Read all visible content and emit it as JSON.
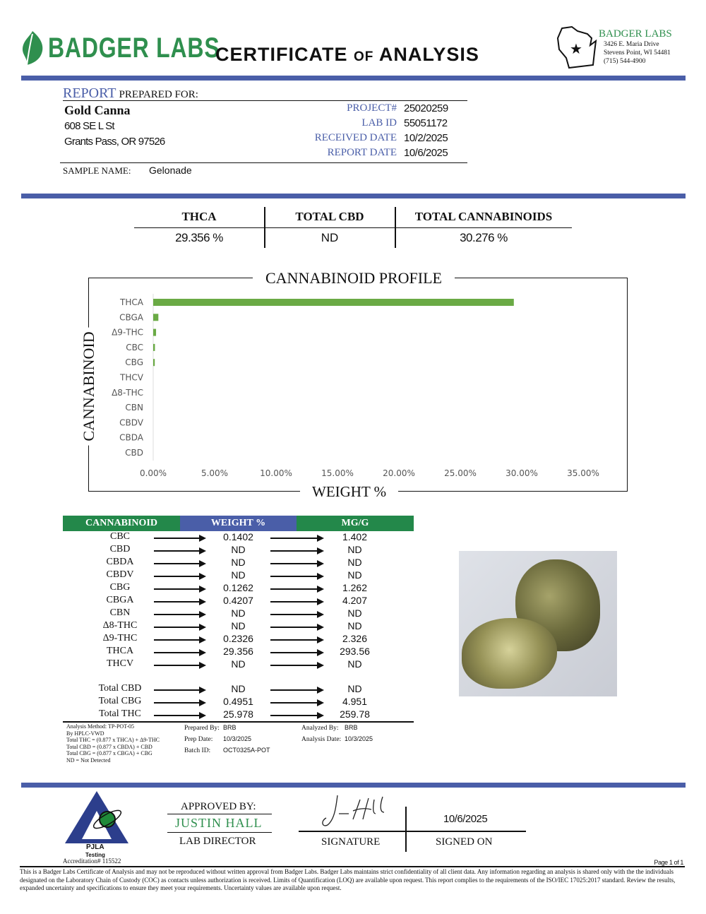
{
  "header": {
    "logo_text": "BADGER LABS",
    "title_pre": "CERTIFICATE",
    "title_of": "OF",
    "title_post": "ANALYSIS",
    "lab_name": "BADGER LABS",
    "lab_address1": "3426 E. Maria Drive",
    "lab_address2": "Stevens Point, WI 54481",
    "lab_phone": "(715) 544-4900"
  },
  "report": {
    "report_label": "REPORT",
    "prepared_for": "PREPARED FOR:",
    "client_name": "Gold Canna",
    "client_address1": "608 SE L St",
    "client_address2": "Grants Pass, OR 97526",
    "project_label": "PROJECT#",
    "project": "25020259",
    "labid_label": "LAB ID",
    "labid": "55051172",
    "received_label": "RECEIVED DATE",
    "received": "10/2/2025",
    "reportdate_label": "REPORT DATE",
    "reportdate": "10/6/2025",
    "sample_label": "SAMPLE NAME:",
    "sample": "Gelonade"
  },
  "summary": [
    {
      "label": "THCA",
      "value": "29.356 %"
    },
    {
      "label": "TOTAL CBD",
      "value": "ND"
    },
    {
      "label": "TOTAL CANNABINOIDS",
      "value": "30.276 %"
    }
  ],
  "chart_data": {
    "type": "bar",
    "orientation": "horizontal",
    "title": "CANNABINOID PROFILE",
    "xlabel": "WEIGHT %",
    "ylabel": "CANNABINOID",
    "categories": [
      "THCA",
      "CBGA",
      "Δ9-THC",
      "CBC",
      "CBG",
      "THCV",
      "Δ8-THC",
      "CBN",
      "CBDV",
      "CBDA",
      "CBD"
    ],
    "values": [
      29.356,
      0.4207,
      0.2326,
      0.1402,
      0.1262,
      0,
      0,
      0,
      0,
      0,
      0
    ],
    "xlim": [
      0,
      35
    ],
    "xticks": [
      "0.00%",
      "5.00%",
      "10.00%",
      "15.00%",
      "20.00%",
      "25.00%",
      "30.00%",
      "35.00%"
    ],
    "grid": false,
    "bar_color": "#6aaa45"
  },
  "table": {
    "headers": [
      "CANNABINOID",
      "WEIGHT %",
      "MG/G"
    ],
    "rows": [
      [
        "CBC",
        "0.1402",
        "1.402"
      ],
      [
        "CBD",
        "ND",
        "ND"
      ],
      [
        "CBDA",
        "ND",
        "ND"
      ],
      [
        "CBDV",
        "ND",
        "ND"
      ],
      [
        "CBG",
        "0.1262",
        "1.262"
      ],
      [
        "CBGA",
        "0.4207",
        "4.207"
      ],
      [
        "CBN",
        "ND",
        "ND"
      ],
      [
        "Δ8-THC",
        "ND",
        "ND"
      ],
      [
        "Δ9-THC",
        "0.2326",
        "2.326"
      ],
      [
        "THCA",
        "29.356",
        "293.56"
      ],
      [
        "THCV",
        "ND",
        "ND"
      ]
    ],
    "totals": [
      [
        "Total CBD",
        "ND",
        "ND"
      ],
      [
        "Total CBG",
        "0.4951",
        "4.951"
      ],
      [
        "Total THC",
        "25.978",
        "259.78"
      ]
    ]
  },
  "notes": [
    "Analysis Method: TP-POT-05",
    "By HPLC-VWD",
    "Total THC = (0.877 x  THCA) + Δ9-THC",
    "Total CBD = (0.877 x  CBDA) + CBD",
    "Total CBG = (0.877 x  CBGA) + CBG",
    "ND = Not Detected"
  ],
  "prep": {
    "prepared_by_label": "Prepared By:",
    "prepared_by": "BRB",
    "prep_date_label": "Prep Date:",
    "prep_date": "10/3/2025",
    "batch_label": "Batch ID:",
    "batch": "OCT0325A-POT",
    "analyzed_by_label": "Analyzed By:",
    "analyzed_by": "BRB",
    "analysis_date_label": "Analysis Date:",
    "analysis_date": "10/3/2025"
  },
  "approval": {
    "pjla": "PJLA",
    "testing": "Testing",
    "accreditation": "Accreditation# 115522",
    "approved_by": "APPROVED BY:",
    "name": "JUSTIN HALL",
    "role": "LAB DIRECTOR",
    "signature_label": "SIGNATURE",
    "signed_on_label": "SIGNED ON",
    "signed_on": "10/6/2025"
  },
  "footer": {
    "page": "Page 1 of 1",
    "disclaimer": "This is a Badger Labs Certificate of Analysis and may not be reproduced without written approval from Badger Labs. Badger Labs maintains strict confidentiality of all client data. Any information regarding an analysis is shared only with the the individuals designated on the Laboratory Chain of Custody (COC) as contacts unless authorization is received. Limits of Quantification (LOQ) are available upon request. This report complies to the requirements of the ISO/IEC 17025:2017 standard. Review the results, expanded uncertainty and specifications to ensure they meet your requirements. Uncertainty values are available upon request."
  }
}
